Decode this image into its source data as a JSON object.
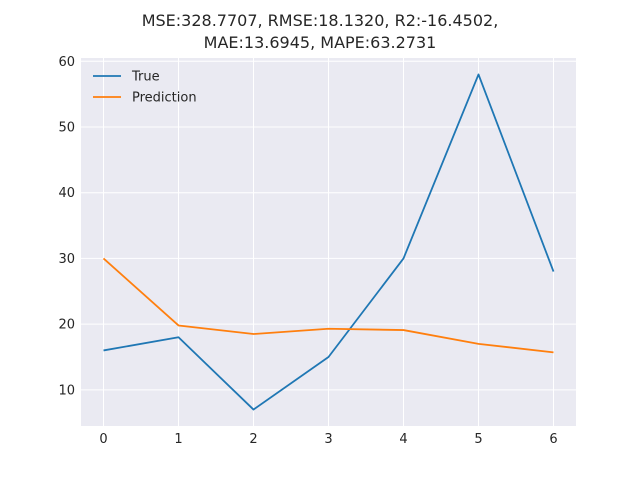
{
  "chart_data": {
    "type": "line",
    "title_lines": [
      "MSE:328.7707, RMSE:18.1320, R2:-16.4502,",
      "MAE:13.6945, MAPE:63.2731"
    ],
    "x": [
      0,
      1,
      2,
      3,
      4,
      5,
      6
    ],
    "series": [
      {
        "name": "True",
        "values": [
          16,
          18,
          7,
          15,
          30,
          58,
          28
        ],
        "color": "#1f77b4"
      },
      {
        "name": "Prediction",
        "values": [
          30,
          19.8,
          18.5,
          19.3,
          19.1,
          17,
          15.7
        ],
        "color": "#ff7f0e"
      }
    ],
    "xlim": [
      -0.3,
      6.3
    ],
    "ylim": [
      4.5,
      60.5
    ],
    "xticks": [
      0,
      1,
      2,
      3,
      4,
      5,
      6
    ],
    "yticks": [
      10,
      20,
      30,
      40,
      50,
      60
    ],
    "grid": true,
    "legend_position": "upper-left",
    "background_color": "#eaeaf2",
    "grid_color": "#ffffff"
  }
}
